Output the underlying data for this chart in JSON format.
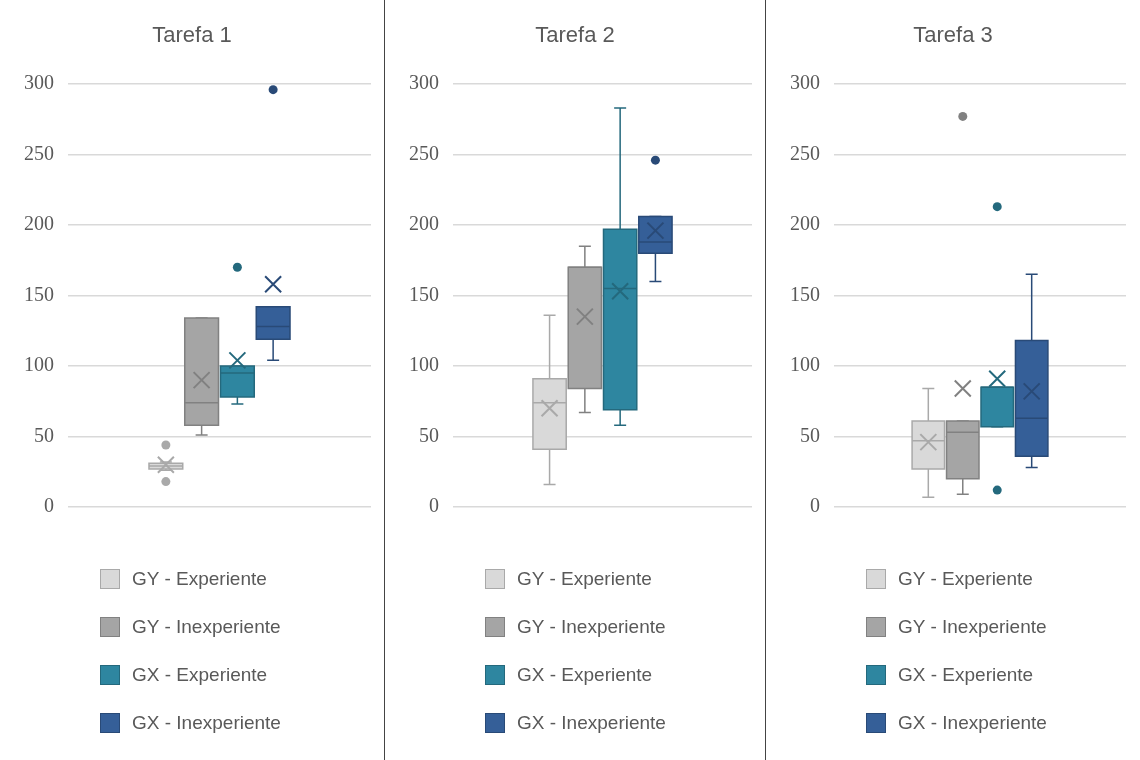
{
  "chart_data": [
    {
      "type": "box",
      "title": "Tarefa 1",
      "categories": [
        null
      ],
      "ylim": [
        0,
        300
      ],
      "yticks": [
        0,
        50,
        100,
        150,
        200,
        250,
        300
      ],
      "grid": "y",
      "legend": "bottom",
      "tick_labels": "y",
      "series": [
        {
          "name": "GY - Experiente",
          "color": "#d9d9d9",
          "boxes": [
            {
              "low": 26,
              "q1": 27,
              "median": 29,
              "q3": 31,
              "high": 32,
              "mean": 30,
              "outliers": [
                44,
                18
              ]
            }
          ]
        },
        {
          "name": "GY - Inexperiente",
          "color": "#a5a5a5",
          "boxes": [
            {
              "low": 51,
              "q1": 58,
              "median": 74,
              "q3": 134,
              "high": 134,
              "mean": 90
            }
          ]
        },
        {
          "name": "GX - Experiente",
          "color": "#2e86a0",
          "boxes": [
            {
              "low": 73,
              "q1": 78,
              "median": 95,
              "q3": 100,
              "high": 100,
              "mean": 104,
              "outliers": [
                170
              ]
            }
          ]
        },
        {
          "name": "GX - Inexperiente",
          "color": "#355f98",
          "boxes": [
            {
              "low": 104,
              "q1": 119,
              "median": 128,
              "q3": 142,
              "high": 142,
              "mean": 158,
              "outliers": [
                296
              ]
            }
          ]
        }
      ]
    },
    {
      "type": "box",
      "title": "Tarefa 2",
      "categories": [
        null
      ],
      "ylim": [
        0,
        300
      ],
      "yticks": [
        0,
        50,
        100,
        150,
        200,
        250,
        300
      ],
      "grid": "y",
      "legend": "bottom",
      "tick_labels": "y",
      "series": [
        {
          "name": "GY - Experiente",
          "color": "#d9d9d9",
          "boxes": [
            {
              "low": 16,
              "q1": 41,
              "median": 74,
              "q3": 91,
              "high": 136,
              "mean": 70
            }
          ]
        },
        {
          "name": "GY - Inexperiente",
          "color": "#a5a5a5",
          "boxes": [
            {
              "low": 67,
              "q1": 84,
              "median": 170,
              "q3": 170,
              "high": 185,
              "mean": 135
            }
          ]
        },
        {
          "name": "GX - Experiente",
          "color": "#2e86a0",
          "boxes": [
            {
              "low": 58,
              "q1": 69,
              "median": 155,
              "q3": 197,
              "high": 283,
              "mean": 153
            }
          ]
        },
        {
          "name": "GX - Inexperiente",
          "color": "#355f98",
          "boxes": [
            {
              "low": 160,
              "q1": 180,
              "median": 188,
              "q3": 206,
              "high": 206,
              "mean": 196,
              "outliers": [
                246
              ]
            }
          ]
        }
      ]
    },
    {
      "type": "box",
      "title": "Tarefa 3",
      "categories": [
        null
      ],
      "ylim": [
        0,
        300
      ],
      "yticks": [
        0,
        50,
        100,
        150,
        200,
        250,
        300
      ],
      "grid": "y",
      "legend": "bottom",
      "tick_labels": "y",
      "series": [
        {
          "name": "GY - Experiente",
          "color": "#d9d9d9",
          "boxes": [
            {
              "low": 7,
              "q1": 27,
              "median": 47,
              "q3": 61,
              "high": 84,
              "mean": 46
            }
          ]
        },
        {
          "name": "GY - Inexperiente",
          "color": "#a5a5a5",
          "boxes": [
            {
              "low": 9,
              "q1": 20,
              "median": 53,
              "q3": 61,
              "high": 61,
              "mean": 84,
              "outliers": [
                277
              ]
            }
          ]
        },
        {
          "name": "GX - Experiente",
          "color": "#2e86a0",
          "boxes": [
            {
              "low": 57,
              "q1": 57,
              "median": 85,
              "q3": 85,
              "high": 85,
              "mean": 91,
              "outliers": [
                213,
                12
              ]
            }
          ]
        },
        {
          "name": "GX - Inexperiente",
          "color": "#355f98",
          "boxes": [
            {
              "low": 28,
              "q1": 36,
              "median": 63,
              "q3": 118,
              "high": 165,
              "mean": 82
            }
          ]
        }
      ]
    }
  ]
}
